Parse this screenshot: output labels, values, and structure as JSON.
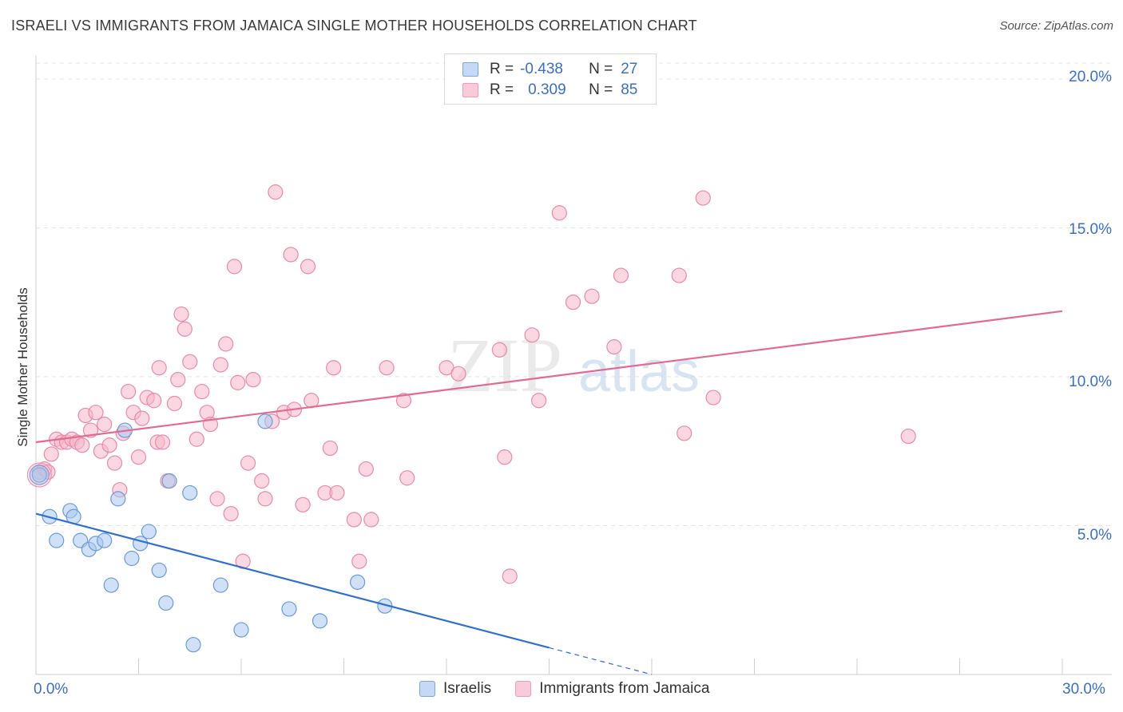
{
  "header": {
    "title": "ISRAELI VS IMMIGRANTS FROM JAMAICA SINGLE MOTHER HOUSEHOLDS CORRELATION CHART",
    "source": "Source: ZipAtlas.com"
  },
  "watermark": {
    "zip": "ZIP",
    "atlas": "atlas"
  },
  "legend": {
    "rows": [
      {
        "r_label": "R =",
        "r_value": "-0.438",
        "n_label": "N =",
        "n_value": "27",
        "color": "#a9c8f0"
      },
      {
        "r_label": "R =",
        "r_value": "0.309",
        "n_label": "N =",
        "n_value": "85",
        "color": "#f6b7c9"
      }
    ]
  },
  "bottom_legend": {
    "items": [
      {
        "label": "Israelis"
      },
      {
        "label": "Immigrants from Jamaica"
      }
    ]
  },
  "axes": {
    "ylabel": "Single Mother Households",
    "x_ticks": [
      "0.0%",
      "30.0%"
    ],
    "y_ticks": [
      "20.0%",
      "15.0%",
      "10.0%",
      "5.0%"
    ]
  },
  "chart_data": {
    "type": "scatter",
    "title": "ISRAELI VS IMMIGRANTS FROM JAMAICA SINGLE MOTHER HOUSEHOLDS CORRELATION CHART",
    "xlabel": "",
    "ylabel": "Single Mother Households",
    "xlim": [
      0,
      30
    ],
    "ylim": [
      0,
      20.8
    ],
    "grid": true,
    "legend_placement": "top-center",
    "colors": {
      "israelis_fill": "#a9c8f0",
      "israelis_stroke": "#6a9ad8",
      "israelis_line": "#2e6fd0",
      "jamaica_fill": "#f6b7c9",
      "jamaica_stroke": "#e98aa8",
      "jamaica_line": "#e36a93",
      "tick_label": "#3b6fc6",
      "grid": "#e3e3e3"
    },
    "series": [
      {
        "name": "Israelis",
        "points": [
          [
            0.1,
            6.7
          ],
          [
            0.4,
            5.3
          ],
          [
            0.6,
            4.5
          ],
          [
            1.0,
            5.5
          ],
          [
            1.1,
            5.3
          ],
          [
            1.3,
            4.5
          ],
          [
            1.55,
            4.2
          ],
          [
            1.75,
            4.4
          ],
          [
            2.0,
            4.5
          ],
          [
            2.2,
            3.0
          ],
          [
            2.4,
            5.9
          ],
          [
            2.6,
            8.2
          ],
          [
            2.8,
            3.9
          ],
          [
            3.05,
            4.4
          ],
          [
            3.3,
            4.8
          ],
          [
            3.6,
            3.5
          ],
          [
            3.8,
            2.4
          ],
          [
            3.9,
            6.5
          ],
          [
            4.5,
            6.1
          ],
          [
            4.6,
            1.0
          ],
          [
            5.4,
            3.0
          ],
          [
            6.0,
            1.5
          ],
          [
            6.7,
            8.5
          ],
          [
            7.4,
            2.2
          ],
          [
            8.3,
            1.8
          ],
          [
            9.4,
            3.1
          ],
          [
            10.2,
            2.3
          ]
        ],
        "trend": {
          "x": [
            0,
            15
          ],
          "y": [
            5.4,
            0.9
          ]
        },
        "trend_extension": {
          "x": [
            15,
            18
          ],
          "y": [
            0.9,
            0.0
          ]
        }
      },
      {
        "name": "Immigrants from Jamaica",
        "points": [
          [
            0.1,
            6.8
          ],
          [
            0.25,
            6.9
          ],
          [
            0.45,
            7.4
          ],
          [
            0.6,
            7.9
          ],
          [
            0.75,
            7.8
          ],
          [
            0.9,
            7.8
          ],
          [
            1.05,
            7.9
          ],
          [
            1.2,
            7.8
          ],
          [
            1.35,
            7.7
          ],
          [
            1.45,
            8.7
          ],
          [
            1.6,
            8.2
          ],
          [
            1.75,
            8.8
          ],
          [
            1.9,
            7.5
          ],
          [
            2.0,
            8.4
          ],
          [
            2.15,
            7.7
          ],
          [
            2.3,
            7.1
          ],
          [
            2.45,
            6.2
          ],
          [
            2.55,
            8.1
          ],
          [
            2.7,
            9.5
          ],
          [
            2.85,
            8.8
          ],
          [
            3.0,
            7.3
          ],
          [
            3.1,
            8.6
          ],
          [
            3.25,
            9.3
          ],
          [
            3.45,
            9.2
          ],
          [
            3.55,
            7.8
          ],
          [
            3.6,
            10.3
          ],
          [
            3.7,
            7.8
          ],
          [
            3.85,
            6.5
          ],
          [
            4.05,
            9.1
          ],
          [
            4.15,
            9.9
          ],
          [
            4.25,
            12.1
          ],
          [
            4.35,
            11.6
          ],
          [
            4.5,
            10.5
          ],
          [
            4.7,
            7.9
          ],
          [
            4.85,
            9.5
          ],
          [
            5.0,
            8.8
          ],
          [
            5.1,
            8.4
          ],
          [
            5.3,
            5.9
          ],
          [
            5.4,
            10.4
          ],
          [
            5.55,
            11.1
          ],
          [
            5.7,
            5.4
          ],
          [
            5.8,
            13.7
          ],
          [
            5.9,
            9.8
          ],
          [
            6.05,
            3.8
          ],
          [
            6.2,
            7.1
          ],
          [
            6.35,
            9.9
          ],
          [
            6.6,
            6.5
          ],
          [
            6.7,
            5.9
          ],
          [
            6.9,
            8.5
          ],
          [
            7.0,
            16.2
          ],
          [
            7.25,
            8.8
          ],
          [
            7.45,
            14.1
          ],
          [
            7.55,
            8.9
          ],
          [
            7.8,
            5.7
          ],
          [
            7.95,
            13.7
          ],
          [
            8.05,
            9.2
          ],
          [
            8.45,
            6.1
          ],
          [
            8.6,
            7.6
          ],
          [
            8.7,
            10.3
          ],
          [
            8.8,
            6.1
          ],
          [
            9.3,
            5.2
          ],
          [
            9.45,
            3.8
          ],
          [
            9.65,
            6.9
          ],
          [
            9.8,
            5.2
          ],
          [
            10.25,
            10.3
          ],
          [
            10.75,
            9.2
          ],
          [
            10.85,
            6.6
          ],
          [
            12.0,
            10.3
          ],
          [
            12.35,
            10.1
          ],
          [
            13.55,
            10.9
          ],
          [
            13.7,
            7.3
          ],
          [
            13.85,
            3.3
          ],
          [
            14.5,
            11.4
          ],
          [
            14.7,
            9.2
          ],
          [
            15.3,
            15.5
          ],
          [
            15.7,
            12.5
          ],
          [
            16.25,
            12.7
          ],
          [
            16.9,
            11.0
          ],
          [
            17.1,
            13.4
          ],
          [
            18.8,
            13.4
          ],
          [
            18.95,
            8.1
          ],
          [
            19.5,
            16.0
          ],
          [
            19.8,
            9.3
          ],
          [
            25.5,
            8.0
          ],
          [
            0.35,
            6.8
          ]
        ],
        "trend": {
          "x": [
            0,
            30
          ],
          "y": [
            7.8,
            12.2
          ]
        }
      }
    ]
  }
}
